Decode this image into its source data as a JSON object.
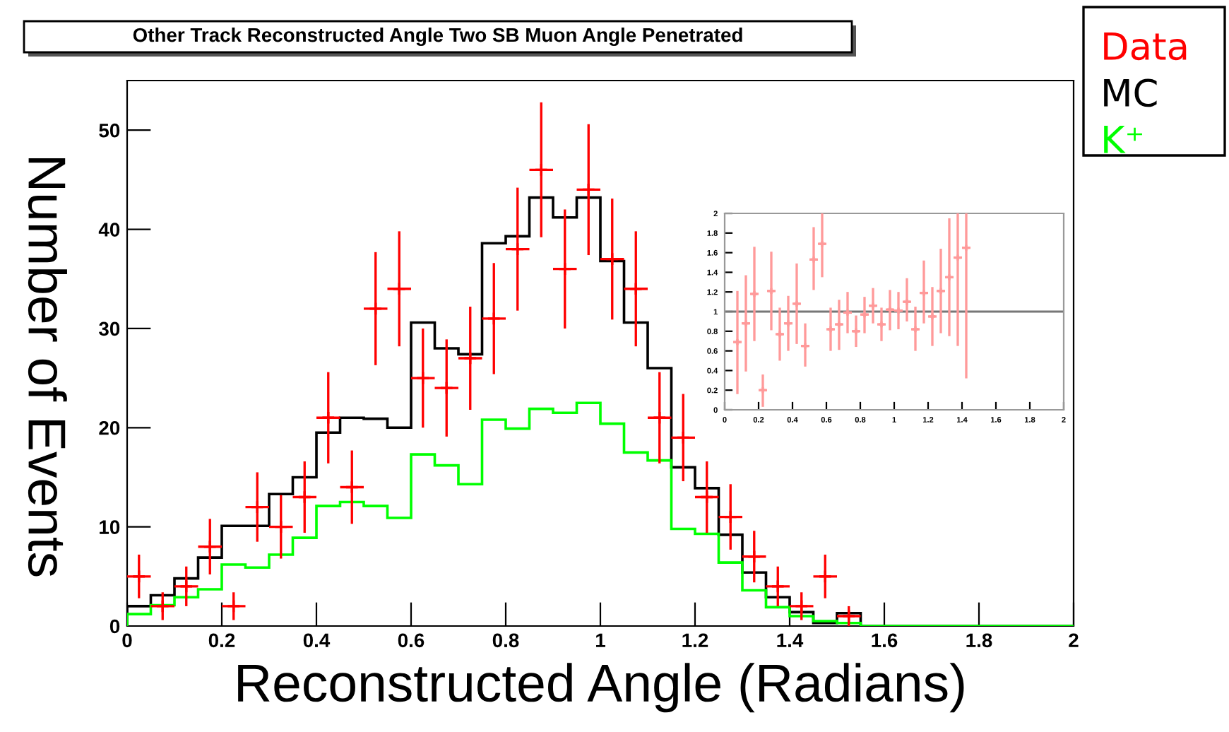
{
  "chart_data": [
    {
      "type": "histogram",
      "title": "Other Track Reconstructed Angle Two SB Muon Angle Penetrated",
      "xlabel": "Reconstructed Angle (Radians)",
      "ylabel": "Number of Events",
      "bins": [
        0,
        0.05,
        0.1,
        0.15,
        0.2,
        0.25,
        0.3,
        0.35,
        0.4,
        0.45,
        0.5,
        0.55,
        0.6,
        0.65,
        0.7,
        0.75,
        0.8,
        0.85,
        0.9,
        0.95,
        1.0,
        1.05,
        1.1,
        1.15,
        1.2,
        1.25,
        1.3,
        1.35,
        1.4,
        1.45,
        1.5,
        1.55,
        1.6,
        1.65,
        1.7,
        1.75,
        1.8,
        1.85,
        1.9,
        1.95,
        2.0
      ],
      "series": [
        {
          "name": "Data",
          "type": "scatter",
          "color": "#ff0000",
          "marker": "cross",
          "x": [
            0.025,
            0.075,
            0.125,
            0.175,
            0.225,
            0.275,
            0.325,
            0.375,
            0.425,
            0.475,
            0.525,
            0.575,
            0.625,
            0.675,
            0.725,
            0.775,
            0.825,
            0.875,
            0.925,
            0.975,
            1.025,
            1.075,
            1.125,
            1.175,
            1.225,
            1.275,
            1.325,
            1.375,
            1.425,
            1.475,
            1.525
          ],
          "values": [
            5,
            2,
            4,
            8,
            2,
            12,
            10,
            13,
            21,
            14,
            32,
            34,
            25,
            24,
            27,
            31,
            38,
            46,
            36,
            44,
            37,
            34,
            21,
            19,
            13,
            11,
            7,
            4,
            2,
            5,
            1
          ],
          "errors": [
            2.2,
            1.4,
            2,
            2.8,
            1.4,
            3.5,
            3.2,
            3.6,
            4.6,
            3.7,
            5.7,
            5.8,
            5,
            4.9,
            5.2,
            5.6,
            6.2,
            6.8,
            6,
            6.6,
            6.1,
            5.8,
            4.6,
            4.4,
            3.6,
            3.3,
            2.6,
            2,
            1.4,
            2.2,
            1
          ],
          "xerrors": [
            0.025,
            0.025,
            0.025,
            0.025,
            0.025,
            0.025,
            0.025,
            0.025,
            0.025,
            0.025,
            0.025,
            0.025,
            0.025,
            0.025,
            0.025,
            0.025,
            0.025,
            0.025,
            0.025,
            0.025,
            0.025,
            0.025,
            0.025,
            0.025,
            0.025,
            0.025,
            0.025,
            0.025,
            0.025,
            0.025,
            0.025
          ]
        },
        {
          "name": "MC",
          "type": "histogram",
          "color": "#000000",
          "values": [
            2.0,
            3.1,
            4.8,
            6.9,
            10.1,
            10.1,
            13.3,
            15.0,
            19.5,
            21.0,
            20.9,
            20.0,
            30.6,
            28.0,
            27.4,
            38.6,
            39.3,
            43.2,
            41.2,
            43.2,
            36.8,
            30.6,
            26.0,
            16.0,
            13.9,
            9.2,
            5.4,
            2.9,
            1.4,
            0.3,
            1.3,
            0,
            0,
            0,
            0,
            0,
            0,
            0,
            0,
            0
          ]
        },
        {
          "name": "K⁺",
          "type": "histogram",
          "color": "#00ff00",
          "values": [
            1.2,
            2.1,
            2.9,
            3.7,
            6.2,
            5.9,
            7.2,
            8.9,
            12.1,
            12.5,
            12.1,
            10.9,
            17.3,
            16.2,
            14.3,
            20.8,
            19.9,
            21.9,
            21.5,
            22.5,
            20.4,
            17.5,
            16.7,
            9.8,
            9.3,
            6.4,
            3.6,
            1.9,
            1.0,
            0.5,
            0.3,
            0,
            0,
            0,
            0,
            0,
            0,
            0,
            0,
            0
          ]
        }
      ],
      "xlim": [
        0,
        2
      ],
      "ylim": [
        0,
        55
      ],
      "xticks": [
        0,
        0.2,
        0.4,
        0.6,
        0.8,
        1,
        1.2,
        1.4,
        1.6,
        1.8,
        2
      ],
      "yticks": [
        0,
        10,
        20,
        30,
        40,
        50
      ],
      "grid": false,
      "legend": "top right"
    },
    {
      "type": "scatter",
      "color": "#ff9a9a",
      "marker": "cross",
      "x": [
        0.075,
        0.125,
        0.175,
        0.225,
        0.275,
        0.325,
        0.375,
        0.425,
        0.475,
        0.525,
        0.575,
        0.625,
        0.675,
        0.725,
        0.775,
        0.825,
        0.875,
        0.925,
        0.975,
        1.025,
        1.075,
        1.125,
        1.175,
        1.225,
        1.275,
        1.325,
        1.375,
        1.425
      ],
      "values": [
        0.69,
        0.88,
        1.18,
        0.2,
        1.21,
        0.77,
        0.88,
        1.08,
        0.65,
        1.53,
        1.69,
        0.82,
        0.87,
        0.99,
        0.8,
        0.97,
        1.06,
        0.87,
        1.02,
        1.01,
        1.1,
        0.82,
        1.19,
        0.95,
        1.21,
        1.35,
        1.55,
        1.65
      ],
      "errors": [
        [
          0.16,
          1.21
        ],
        [
          0.39,
          1.37
        ],
        [
          0.7,
          1.66
        ],
        [
          0.03,
          0.36
        ],
        [
          0.81,
          1.61
        ],
        [
          0.5,
          1.04
        ],
        [
          0.6,
          1.16
        ],
        [
          0.67,
          1.49
        ],
        [
          0.44,
          0.88
        ],
        [
          1.22,
          1.86
        ],
        [
          1.35,
          2.0
        ],
        [
          0.6,
          1.04
        ],
        [
          0.61,
          1.12
        ],
        [
          0.78,
          1.2
        ],
        [
          0.64,
          0.96
        ],
        [
          0.78,
          1.15
        ],
        [
          0.88,
          1.24
        ],
        [
          0.7,
          1.04
        ],
        [
          0.81,
          1.22
        ],
        [
          0.82,
          1.2
        ],
        [
          0.9,
          1.34
        ],
        [
          0.6,
          1.05
        ],
        [
          0.88,
          1.52
        ],
        [
          0.65,
          1.25
        ],
        [
          0.78,
          1.64
        ],
        [
          0.75,
          1.95
        ],
        [
          0.65,
          2.0
        ],
        [
          0.32,
          2.0
        ]
      ],
      "xerrors": [
        0.025,
        0.025,
        0.025,
        0.025,
        0.025,
        0.025,
        0.025,
        0.025,
        0.025,
        0.025,
        0.025,
        0.025,
        0.025,
        0.025,
        0.025,
        0.025,
        0.025,
        0.025,
        0.025,
        0.025,
        0.025,
        0.025,
        0.025,
        0.025,
        0.025,
        0.025,
        0.025,
        0.025
      ],
      "ref_lines": [
        {
          "axis": "y",
          "value": 1,
          "color": "#777777"
        }
      ],
      "xlim": [
        0,
        2
      ],
      "ylim": [
        0,
        2
      ],
      "xticks": [
        0,
        0.2,
        0.4,
        0.6,
        0.8,
        1,
        1.2,
        1.4,
        1.6,
        1.8,
        2
      ],
      "yticks": [
        0,
        0.2,
        0.4,
        0.6,
        0.8,
        1,
        1.2,
        1.4,
        1.6,
        1.8,
        2
      ],
      "grid": false
    }
  ]
}
